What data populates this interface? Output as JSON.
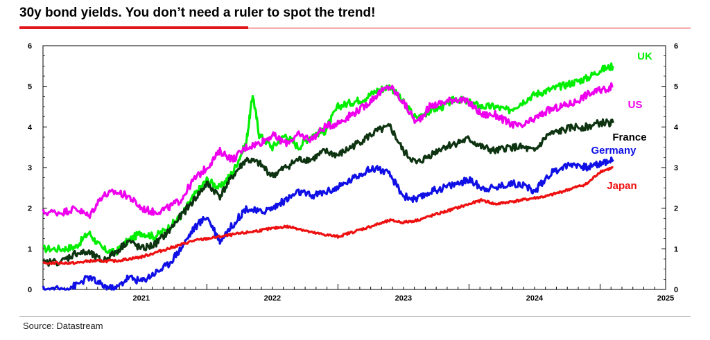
{
  "title": "30y bond yields. You don’t need a ruler to spot the trend!",
  "source": "Source: Datastream",
  "colors": {
    "accent": "#e0161b",
    "UK": "#00ee00",
    "US": "#ee00ee",
    "France": "#0d3310",
    "Germany": "#1010e6",
    "Japan": "#ee1010"
  },
  "chart_data": {
    "type": "line",
    "title": "30y bond yields. You don’t need a ruler to spot the trend!",
    "xlabel": "",
    "ylabel": "",
    "xlim": [
      2020.75,
      2025.5
    ],
    "ylim": [
      0,
      6
    ],
    "y_ticks": [
      "0",
      "1",
      "2",
      "3",
      "4",
      "5",
      "6"
    ],
    "x_tick_labels": [
      "2021",
      "2022",
      "2023",
      "2024",
      "2025"
    ],
    "grid": false,
    "legend": "inline labels at right end of lines",
    "series": [
      {
        "name": "UK",
        "color": "#00ee00",
        "x": [
          2020.75,
          2020.9,
          2021.0,
          2021.1,
          2021.2,
          2021.3,
          2021.4,
          2021.5,
          2021.6,
          2021.7,
          2021.8,
          2021.9,
          2022.0,
          2022.1,
          2022.2,
          2022.3,
          2022.35,
          2022.4,
          2022.5,
          2022.6,
          2022.7,
          2022.8,
          2022.9,
          2023.0,
          2023.1,
          2023.2,
          2023.3,
          2023.4,
          2023.5,
          2023.6,
          2023.7,
          2023.8,
          2023.9,
          2024.0,
          2024.1,
          2024.2,
          2024.3,
          2024.4,
          2024.5,
          2024.6,
          2024.7,
          2024.8,
          2024.9,
          2025.0,
          2025.1
        ],
        "values": [
          1.0,
          1.0,
          1.05,
          1.4,
          1.0,
          0.9,
          1.2,
          1.4,
          1.3,
          1.5,
          1.8,
          2.3,
          2.7,
          2.5,
          2.9,
          3.6,
          4.8,
          3.8,
          3.5,
          3.8,
          3.5,
          3.8,
          3.9,
          4.5,
          4.6,
          4.7,
          4.9,
          5.0,
          4.6,
          4.2,
          4.4,
          4.5,
          4.7,
          4.6,
          4.5,
          4.5,
          4.4,
          4.6,
          4.8,
          4.9,
          5.0,
          5.1,
          5.2,
          5.4,
          5.5
        ]
      },
      {
        "name": "US",
        "color": "#ee00ee",
        "x": [
          2020.75,
          2020.9,
          2021.0,
          2021.1,
          2021.2,
          2021.3,
          2021.4,
          2021.5,
          2021.6,
          2021.7,
          2021.8,
          2021.9,
          2022.0,
          2022.1,
          2022.2,
          2022.3,
          2022.4,
          2022.5,
          2022.6,
          2022.7,
          2022.8,
          2022.9,
          2023.0,
          2023.1,
          2023.2,
          2023.3,
          2023.4,
          2023.5,
          2023.6,
          2023.7,
          2023.8,
          2023.9,
          2024.0,
          2024.1,
          2024.2,
          2024.3,
          2024.4,
          2024.5,
          2024.6,
          2024.7,
          2024.8,
          2024.9,
          2025.0,
          2025.1
        ],
        "values": [
          1.9,
          1.9,
          2.0,
          1.8,
          2.3,
          2.4,
          2.3,
          2.0,
          1.9,
          2.0,
          2.2,
          2.7,
          3.0,
          3.4,
          3.2,
          3.5,
          3.6,
          3.8,
          3.6,
          3.8,
          3.7,
          4.0,
          4.1,
          4.3,
          4.5,
          4.8,
          5.0,
          4.6,
          4.1,
          4.5,
          4.6,
          4.7,
          4.6,
          4.3,
          4.3,
          4.1,
          4.0,
          4.2,
          4.4,
          4.5,
          4.6,
          4.8,
          4.9,
          5.0
        ]
      },
      {
        "name": "France",
        "color": "#0d3310",
        "x": [
          2020.75,
          2020.9,
          2021.0,
          2021.1,
          2021.2,
          2021.3,
          2021.4,
          2021.5,
          2021.6,
          2021.7,
          2021.8,
          2021.9,
          2022.0,
          2022.1,
          2022.2,
          2022.3,
          2022.4,
          2022.5,
          2022.6,
          2022.7,
          2022.8,
          2022.9,
          2023.0,
          2023.1,
          2023.2,
          2023.3,
          2023.4,
          2023.5,
          2023.6,
          2023.7,
          2023.8,
          2023.9,
          2024.0,
          2024.1,
          2024.2,
          2024.3,
          2024.4,
          2024.5,
          2024.6,
          2024.7,
          2024.8,
          2024.9,
          2025.0,
          2025.1
        ],
        "values": [
          0.65,
          0.7,
          0.9,
          0.9,
          0.7,
          0.9,
          1.2,
          1.0,
          1.1,
          1.4,
          1.8,
          2.2,
          2.6,
          2.3,
          2.8,
          3.2,
          3.1,
          2.8,
          3.0,
          3.2,
          3.2,
          3.4,
          3.3,
          3.5,
          3.7,
          3.9,
          4.0,
          3.4,
          3.1,
          3.3,
          3.5,
          3.6,
          3.7,
          3.5,
          3.4,
          3.5,
          3.5,
          3.4,
          3.8,
          3.9,
          4.0,
          4.0,
          4.1,
          4.1
        ]
      },
      {
        "name": "Germany",
        "color": "#1010e6",
        "x": [
          2020.75,
          2020.9,
          2021.0,
          2021.1,
          2021.2,
          2021.3,
          2021.4,
          2021.5,
          2021.6,
          2021.7,
          2021.8,
          2021.9,
          2022.0,
          2022.1,
          2022.2,
          2022.3,
          2022.4,
          2022.5,
          2022.6,
          2022.7,
          2022.8,
          2022.9,
          2023.0,
          2023.1,
          2023.2,
          2023.3,
          2023.4,
          2023.5,
          2023.6,
          2023.7,
          2023.8,
          2023.9,
          2024.0,
          2024.1,
          2024.2,
          2024.3,
          2024.4,
          2024.5,
          2024.6,
          2024.7,
          2024.8,
          2024.9,
          2025.0,
          2025.1
        ],
        "values": [
          0.0,
          0.0,
          0.1,
          0.3,
          0.1,
          0.0,
          0.3,
          0.2,
          0.4,
          0.6,
          1.0,
          1.5,
          1.8,
          1.2,
          1.6,
          2.0,
          1.9,
          2.0,
          2.2,
          2.4,
          2.3,
          2.4,
          2.5,
          2.7,
          2.9,
          3.0,
          2.8,
          2.3,
          2.2,
          2.4,
          2.5,
          2.6,
          2.7,
          2.5,
          2.5,
          2.6,
          2.6,
          2.4,
          2.8,
          3.0,
          3.1,
          3.0,
          3.1,
          3.2
        ]
      },
      {
        "name": "Japan",
        "color": "#ee1010",
        "x": [
          2020.75,
          2020.9,
          2021.0,
          2021.1,
          2021.2,
          2021.3,
          2021.4,
          2021.5,
          2021.6,
          2021.7,
          2021.8,
          2021.9,
          2022.0,
          2022.1,
          2022.2,
          2022.3,
          2022.4,
          2022.5,
          2022.6,
          2022.7,
          2022.8,
          2022.9,
          2023.0,
          2023.1,
          2023.2,
          2023.3,
          2023.4,
          2023.5,
          2023.6,
          2023.7,
          2023.8,
          2023.9,
          2024.0,
          2024.1,
          2024.2,
          2024.3,
          2024.4,
          2024.5,
          2024.6,
          2024.7,
          2024.8,
          2024.9,
          2025.0,
          2025.1
        ],
        "values": [
          0.65,
          0.65,
          0.65,
          0.7,
          0.7,
          0.7,
          0.75,
          0.8,
          0.9,
          1.0,
          1.1,
          1.2,
          1.25,
          1.3,
          1.35,
          1.4,
          1.45,
          1.5,
          1.55,
          1.5,
          1.4,
          1.35,
          1.3,
          1.4,
          1.5,
          1.6,
          1.7,
          1.65,
          1.7,
          1.8,
          1.9,
          2.0,
          2.1,
          2.2,
          2.1,
          2.15,
          2.2,
          2.25,
          2.3,
          2.4,
          2.5,
          2.6,
          2.9,
          3.0
        ]
      }
    ]
  }
}
